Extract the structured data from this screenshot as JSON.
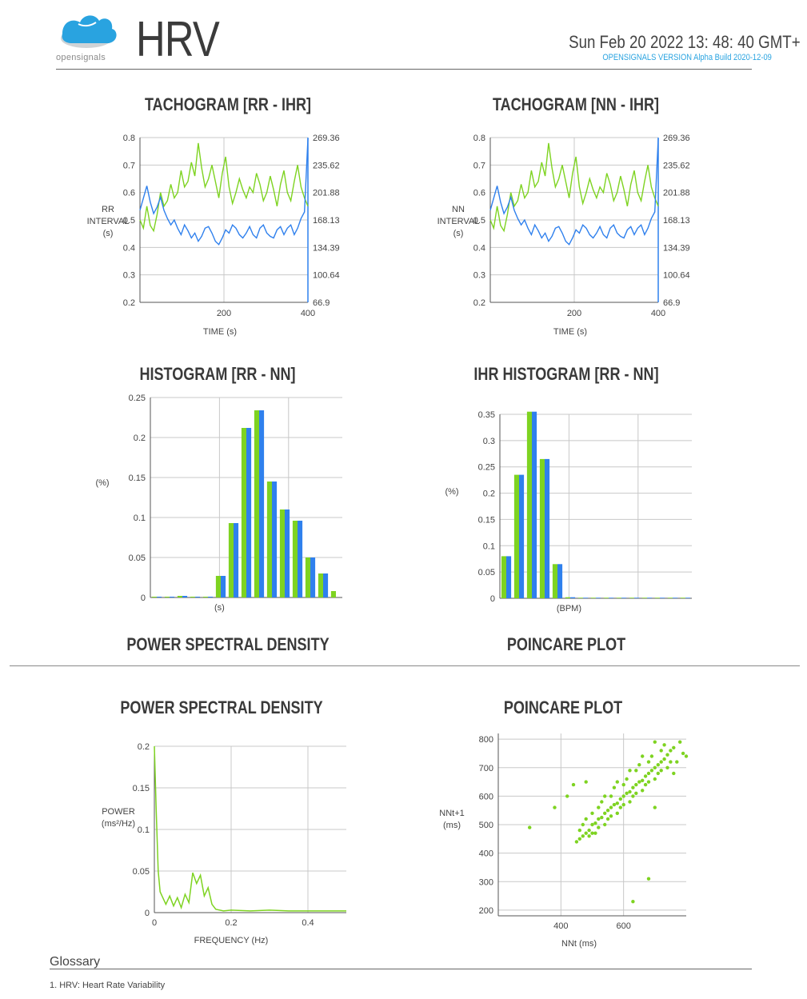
{
  "header": {
    "logo_text": "opensignals",
    "title": "HRV",
    "datetime": "Sun Feb 20  2022 13:  48:  40  GMT+",
    "version": "OPENSIGNALS VERSION   Alpha Build 2020-12-09"
  },
  "titles": {
    "tach_rr": "TACHOGRAM [RR - IHR]",
    "tach_nn": "TACHOGRAM [NN - IHR]",
    "hist_rr": "HISTOGRAM [RR - NN]",
    "hist_ihr": "IHR HISTOGRAM [RR - NN]",
    "psd_top": "POWER SPECTRAL DENSITY",
    "poincare_top": "POINCARE PLOT",
    "psd": "POWER SPECTRAL DENSITY",
    "poincare": "POINCARE PLOT"
  },
  "glossary": {
    "title": "Glossary",
    "item": "1.  HRV:  Heart Rate Variability"
  },
  "colors": {
    "green": "#7ed321",
    "blue": "#2f80ed",
    "grid": "#c8c8c8",
    "axis": "#555555"
  },
  "chart_data": [
    {
      "type": "line",
      "title": "TACHOGRAM [RR - IHR]",
      "xlabel": "TIME (s)",
      "ylabel": [
        "RR",
        "INTERVAL",
        "(s)"
      ],
      "xlim": [
        0,
        400
      ],
      "ylim": [
        0.2,
        0.8
      ],
      "xticks": [
        "200",
        "400"
      ],
      "yticks": [
        "0.2",
        "0.3",
        "0.4",
        "0.5",
        "0.6",
        "0.7",
        "0.8"
      ],
      "y2ticks": [
        "66.9",
        "100.64",
        "134.39",
        "168.13",
        "201.88",
        "235.62",
        "269.36"
      ],
      "y2lim": [
        66.9,
        269.36
      ],
      "series": [
        {
          "axis": "left",
          "color": "green",
          "values": [
            0.5,
            0.47,
            0.55,
            0.48,
            0.46,
            0.52,
            0.6,
            0.55,
            0.57,
            0.63,
            0.58,
            0.6,
            0.68,
            0.62,
            0.64,
            0.71,
            0.66,
            0.78,
            0.69,
            0.62,
            0.65,
            0.7,
            0.64,
            0.58,
            0.67,
            0.73,
            0.62,
            0.56,
            0.6,
            0.65,
            0.61,
            0.58,
            0.62,
            0.6,
            0.67,
            0.63,
            0.57,
            0.6,
            0.66,
            0.61,
            0.55,
            0.63,
            0.68,
            0.6,
            0.57,
            0.64,
            0.7,
            0.62,
            0.58,
            0.55
          ]
        },
        {
          "axis": "right",
          "color": "blue",
          "values": [
            180,
            195,
            210,
            190,
            176,
            184,
            196,
            180,
            170,
            162,
            168,
            158,
            150,
            162,
            155,
            146,
            152,
            142,
            148,
            158,
            160,
            152,
            142,
            138,
            146,
            156,
            152,
            162,
            158,
            150,
            146,
            152,
            160,
            150,
            146,
            158,
            162,
            152,
            148,
            146,
            156,
            160,
            150,
            158,
            162,
            150,
            158,
            170,
            178,
            268
          ]
        }
      ]
    },
    {
      "type": "line",
      "title": "TACHOGRAM [NN - IHR]",
      "xlabel": "TIME (s)",
      "ylabel": [
        "NN",
        "INTERVAL",
        "(s)"
      ],
      "xlim": [
        0,
        400
      ],
      "ylim": [
        0.2,
        0.8
      ],
      "xticks": [
        "200",
        "400"
      ],
      "yticks": [
        "0.2",
        "0.3",
        "0.4",
        "0.5",
        "0.6",
        "0.7",
        "0.8"
      ],
      "y2ticks": [
        "66.9",
        "100.64",
        "134.39",
        "168.13",
        "201.88",
        "235.62",
        "269.36"
      ],
      "y2lim": [
        66.9,
        269.36
      ],
      "series": [
        {
          "axis": "left",
          "color": "green",
          "values": [
            0.5,
            0.47,
            0.55,
            0.48,
            0.46,
            0.52,
            0.6,
            0.55,
            0.57,
            0.63,
            0.58,
            0.6,
            0.68,
            0.62,
            0.64,
            0.71,
            0.66,
            0.78,
            0.69,
            0.62,
            0.65,
            0.7,
            0.64,
            0.58,
            0.67,
            0.73,
            0.62,
            0.56,
            0.6,
            0.65,
            0.61,
            0.58,
            0.62,
            0.6,
            0.67,
            0.63,
            0.57,
            0.6,
            0.66,
            0.61,
            0.55,
            0.63,
            0.68,
            0.6,
            0.57,
            0.64,
            0.7,
            0.62,
            0.58,
            0.55
          ]
        },
        {
          "axis": "right",
          "color": "blue",
          "values": [
            180,
            195,
            210,
            190,
            176,
            184,
            196,
            180,
            170,
            162,
            168,
            158,
            150,
            162,
            155,
            146,
            152,
            142,
            148,
            158,
            160,
            152,
            142,
            138,
            146,
            156,
            152,
            162,
            158,
            150,
            146,
            152,
            160,
            150,
            146,
            158,
            162,
            152,
            148,
            146,
            156,
            160,
            150,
            158,
            162,
            150,
            158,
            170,
            178,
            268
          ]
        }
      ]
    },
    {
      "type": "bar",
      "title": "HISTOGRAM [RR - NN]",
      "xlabel": "(s)",
      "ylabel": "(%)",
      "ylim": [
        0,
        0.25
      ],
      "yticks": [
        "0",
        "0.05",
        "0.1",
        "0.15",
        "0.2",
        "0.25"
      ],
      "series": [
        {
          "name": "RR",
          "color": "green",
          "values": [
            0.001,
            0.001,
            0.002,
            0.001,
            0.001,
            0.027,
            0.093,
            0.212,
            0.234,
            0.145,
            0.11,
            0.096,
            0.05,
            0.03,
            0.008
          ]
        },
        {
          "name": "NN",
          "color": "blue",
          "values": [
            0.001,
            0.001,
            0.002,
            0.001,
            0.001,
            0.027,
            0.093,
            0.212,
            0.234,
            0.145,
            0.11,
            0.096,
            0.05,
            0.03,
            0.0
          ]
        }
      ]
    },
    {
      "type": "bar",
      "title": "IHR HISTOGRAM [RR - NN]",
      "xlabel": "(BPM)",
      "ylabel": "(%)",
      "ylim": [
        0,
        0.35
      ],
      "yticks": [
        "0",
        "0.05",
        "0.1",
        "0.15",
        "0.2",
        "0.25",
        "0.3",
        "0.35"
      ],
      "series": [
        {
          "name": "RR",
          "color": "green",
          "values": [
            0.08,
            0.235,
            0.355,
            0.265,
            0.065,
            0.002,
            0.001,
            0.001,
            0.001,
            0.001,
            0.001,
            0.001,
            0.001,
            0.001,
            0.001
          ]
        },
        {
          "name": "NN",
          "color": "blue",
          "values": [
            0.08,
            0.235,
            0.355,
            0.265,
            0.065,
            0.002,
            0.001,
            0.001,
            0.001,
            0.001,
            0.001,
            0.001,
            0.001,
            0.001,
            0.001
          ]
        }
      ]
    },
    {
      "type": "line",
      "title": "POWER SPECTRAL DENSITY",
      "xlabel": "FREQUENCY (Hz)",
      "ylabel": [
        "POWER",
        "(ms²/Hz)"
      ],
      "xlim": [
        0,
        0.5
      ],
      "ylim": [
        0,
        0.2
      ],
      "xticks": [
        "0",
        "0.2",
        "0.4"
      ],
      "yticks": [
        "0",
        "0.05",
        "0.1",
        "0.15",
        "0.2"
      ],
      "x": [
        0,
        0.005,
        0.01,
        0.015,
        0.02,
        0.03,
        0.04,
        0.05,
        0.06,
        0.07,
        0.08,
        0.09,
        0.1,
        0.11,
        0.12,
        0.13,
        0.14,
        0.15,
        0.16,
        0.18,
        0.2,
        0.25,
        0.3,
        0.35,
        0.4,
        0.45,
        0.5
      ],
      "y": [
        0.2,
        0.12,
        0.05,
        0.025,
        0.02,
        0.01,
        0.02,
        0.008,
        0.018,
        0.006,
        0.022,
        0.012,
        0.048,
        0.035,
        0.045,
        0.02,
        0.03,
        0.01,
        0.004,
        0.002,
        0.003,
        0.002,
        0.003,
        0.002,
        0.002,
        0.002,
        0.002
      ]
    },
    {
      "type": "scatter",
      "title": "POINCARE PLOT",
      "xlabel": "NNt (ms)",
      "ylabel": [
        "NNt+1",
        "(ms)"
      ],
      "xlim": [
        200,
        800
      ],
      "ylim": [
        180,
        820
      ],
      "xticks": [
        "400",
        "600"
      ],
      "yticks": [
        "200",
        "300",
        "400",
        "500",
        "600",
        "700",
        "800"
      ],
      "points": [
        [
          300,
          490
        ],
        [
          380,
          560
        ],
        [
          630,
          230
        ],
        [
          680,
          310
        ],
        [
          450,
          440
        ],
        [
          460,
          450
        ],
        [
          470,
          460
        ],
        [
          480,
          470
        ],
        [
          490,
          480
        ],
        [
          500,
          500
        ],
        [
          510,
          505
        ],
        [
          520,
          520
        ],
        [
          530,
          525
        ],
        [
          540,
          540
        ],
        [
          550,
          550
        ],
        [
          560,
          560
        ],
        [
          570,
          570
        ],
        [
          580,
          575
        ],
        [
          590,
          590
        ],
        [
          600,
          600
        ],
        [
          610,
          610
        ],
        [
          620,
          615
        ],
        [
          630,
          630
        ],
        [
          640,
          640
        ],
        [
          650,
          650
        ],
        [
          660,
          655
        ],
        [
          670,
          670
        ],
        [
          680,
          680
        ],
        [
          690,
          690
        ],
        [
          700,
          700
        ],
        [
          710,
          710
        ],
        [
          720,
          720
        ],
        [
          730,
          730
        ],
        [
          740,
          745
        ],
        [
          750,
          760
        ],
        [
          760,
          770
        ],
        [
          780,
          790
        ],
        [
          790,
          750
        ],
        [
          800,
          740
        ],
        [
          470,
          500
        ],
        [
          500,
          470
        ],
        [
          520,
          560
        ],
        [
          540,
          500
        ],
        [
          560,
          600
        ],
        [
          580,
          540
        ],
        [
          600,
          640
        ],
        [
          620,
          580
        ],
        [
          640,
          690
        ],
        [
          660,
          620
        ],
        [
          680,
          720
        ],
        [
          700,
          660
        ],
        [
          720,
          760
        ],
        [
          740,
          700
        ],
        [
          480,
          520
        ],
        [
          510,
          470
        ],
        [
          530,
          580
        ],
        [
          550,
          520
        ],
        [
          570,
          630
        ],
        [
          590,
          560
        ],
        [
          610,
          660
        ],
        [
          630,
          600
        ],
        [
          650,
          710
        ],
        [
          670,
          640
        ],
        [
          690,
          740
        ],
        [
          710,
          680
        ],
        [
          730,
          780
        ],
        [
          750,
          720
        ],
        [
          460,
          480
        ],
        [
          490,
          460
        ],
        [
          500,
          540
        ],
        [
          520,
          490
        ],
        [
          540,
          600
        ],
        [
          560,
          530
        ],
        [
          580,
          650
        ],
        [
          600,
          570
        ],
        [
          620,
          690
        ],
        [
          640,
          610
        ],
        [
          660,
          740
        ],
        [
          680,
          650
        ],
        [
          700,
          790
        ],
        [
          720,
          690
        ],
        [
          420,
          600
        ],
        [
          440,
          640
        ],
        [
          480,
          650
        ],
        [
          700,
          560
        ],
        [
          760,
          680
        ],
        [
          770,
          720
        ]
      ]
    }
  ]
}
